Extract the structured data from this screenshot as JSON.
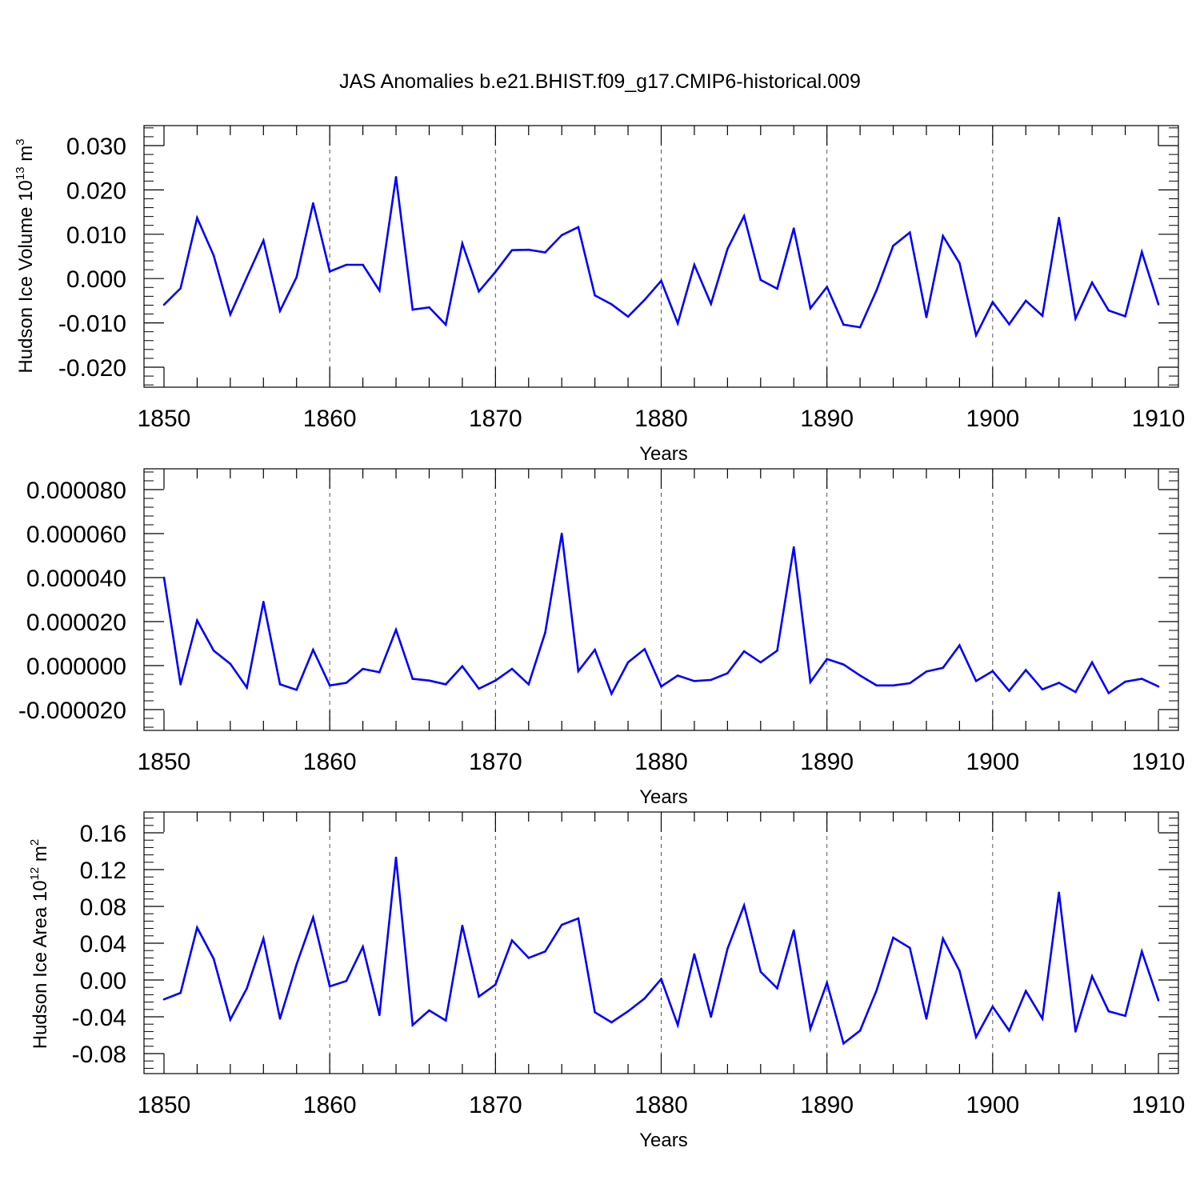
{
  "title": "JAS Anomalies b.e21.BHIST.f09_g17.CMIP6-historical.009",
  "colors": {
    "line": "#0000ff",
    "axes": "#000000",
    "grid": "#555555"
  },
  "chart_data": [
    {
      "type": "line",
      "ylabel_main": "Hudson Ice Volume 10",
      "ylabel_exp": "13",
      "ylabel_unit": " m",
      "ylabel_unit_exp": "3",
      "xlabel": "Years",
      "xlim": [
        1850,
        1910
      ],
      "ylim": [
        -0.02,
        0.03
      ],
      "yticks": [
        -0.02,
        -0.01,
        0.0,
        0.01,
        0.02,
        0.03
      ],
      "yticklabels": [
        "-0.020",
        "-0.010",
        "0.000",
        "0.010",
        "0.020",
        "0.030"
      ],
      "xticks": [
        1850,
        1860,
        1870,
        1880,
        1890,
        1900,
        1910
      ],
      "xticklabels": [
        "1850",
        "1860",
        "1870",
        "1880",
        "1890",
        "1900",
        "1910"
      ],
      "grid_x": [
        1860,
        1870,
        1880,
        1890,
        1900
      ],
      "x_start": 1850,
      "values": [
        -0.0059,
        -0.0022,
        0.0137,
        0.0052,
        -0.0081,
        0.0003,
        0.0086,
        -0.0073,
        0.0003,
        0.017,
        0.0016,
        0.0031,
        0.0031,
        -0.0027,
        0.0229,
        -0.007,
        -0.0065,
        -0.0104,
        0.0079,
        -0.0029,
        0.0015,
        0.0064,
        0.0065,
        0.0059,
        0.0098,
        0.0116,
        -0.0038,
        -0.0058,
        -0.0086,
        -0.0048,
        -0.0005,
        -0.0101,
        0.0031,
        -0.0057,
        0.0067,
        0.0141,
        -0.0003,
        -0.0023,
        0.0113,
        -0.0067,
        -0.0019,
        -0.0104,
        -0.011,
        -0.0026,
        0.0074,
        0.0104,
        -0.0087,
        0.0096,
        0.0035,
        -0.0128,
        -0.0053,
        -0.0103,
        -0.005,
        -0.0084,
        0.0137,
        -0.009,
        -0.0009,
        -0.0072,
        -0.0085,
        0.006,
        -0.0058
      ]
    },
    {
      "type": "line",
      "ylabel_main": "",
      "xlabel": "Years",
      "xlim": [
        1850,
        1910
      ],
      "ylim": [
        -2e-05,
        8e-05
      ],
      "yticks": [
        -2e-05,
        0.0,
        2e-05,
        4e-05,
        6e-05,
        8e-05
      ],
      "yticklabels": [
        "-0.000020",
        "0.000000",
        "0.000020",
        "0.000040",
        "0.000060",
        "0.000080"
      ],
      "xticks": [
        1850,
        1860,
        1870,
        1880,
        1890,
        1900,
        1910
      ],
      "xticklabels": [
        "1850",
        "1860",
        "1870",
        "1880",
        "1890",
        "1900",
        "1910"
      ],
      "grid_x": [
        1860,
        1870,
        1880,
        1890,
        1900
      ],
      "x_start": 1850,
      "values": [
        4e-05,
        -8.5e-06,
        2.05e-05,
        6.8e-06,
        8e-07,
        -1e-05,
        2.9e-05,
        -8.5e-06,
        -1.1e-05,
        7.2e-06,
        -9e-06,
        -7.8e-06,
        -1.5e-06,
        -3e-06,
        1.63e-05,
        -6e-06,
        -6.8e-06,
        -8.5e-06,
        -3e-07,
        -1.05e-05,
        -6.8e-06,
        -1.5e-06,
        -8.5e-06,
        1.5e-05,
        6e-05,
        -2.5e-06,
        7.2e-06,
        -1.28e-05,
        1.5e-06,
        7.5e-06,
        -9.5e-06,
        -4.5e-06,
        -7e-06,
        -6.5e-06,
        -3.5e-06,
        6.5e-06,
        1.5e-06,
        6.8e-06,
        5.38e-05,
        -7.5e-06,
        3e-06,
        5e-07,
        -4.5e-06,
        -9e-06,
        -9e-06,
        -8e-06,
        -2.7e-06,
        -1e-06,
        9.2e-06,
        -7e-06,
        -2.5e-06,
        -1.15e-05,
        -2e-06,
        -1.08e-05,
        -7.8e-06,
        -1.2e-05,
        1.5e-06,
        -1.25e-05,
        -7.3e-06,
        -6e-06,
        -9.5e-06
      ]
    },
    {
      "type": "line",
      "ylabel_main": "Hudson Ice Area 10",
      "ylabel_exp": "12",
      "ylabel_unit": " m",
      "ylabel_unit_exp": "2",
      "xlabel": "Years",
      "xlim": [
        1850,
        1910
      ],
      "ylim": [
        -0.08,
        0.16
      ],
      "yticks": [
        -0.08,
        -0.04,
        0.0,
        0.04,
        0.08,
        0.12,
        0.16
      ],
      "yticklabels": [
        "-0.08",
        "-0.04",
        "0.00",
        "0.04",
        "0.08",
        "0.12",
        "0.16"
      ],
      "xticks": [
        1850,
        1860,
        1870,
        1880,
        1890,
        1900,
        1910
      ],
      "xticklabels": [
        "1850",
        "1860",
        "1870",
        "1880",
        "1890",
        "1900",
        "1910"
      ],
      "grid_x": [
        1860,
        1870,
        1880,
        1890,
        1900
      ],
      "x_start": 1850,
      "values": [
        -0.021,
        -0.014,
        0.057,
        0.023,
        -0.043,
        -0.009,
        0.045,
        -0.042,
        0.017,
        0.068,
        -0.007,
        -0.001,
        0.036,
        -0.038,
        0.133,
        -0.049,
        -0.033,
        -0.044,
        0.059,
        -0.018,
        -0.005,
        0.043,
        0.024,
        0.031,
        0.06,
        0.067,
        -0.035,
        -0.046,
        -0.034,
        -0.02,
        0.001,
        -0.049,
        0.028,
        -0.04,
        0.034,
        0.081,
        0.009,
        -0.009,
        0.054,
        -0.053,
        -0.003,
        -0.069,
        -0.055,
        -0.011,
        0.046,
        0.035,
        -0.042,
        0.045,
        0.01,
        -0.062,
        -0.029,
        -0.055,
        -0.012,
        -0.042,
        0.095,
        -0.056,
        0.004,
        -0.034,
        -0.039,
        0.031,
        -0.022
      ]
    }
  ]
}
